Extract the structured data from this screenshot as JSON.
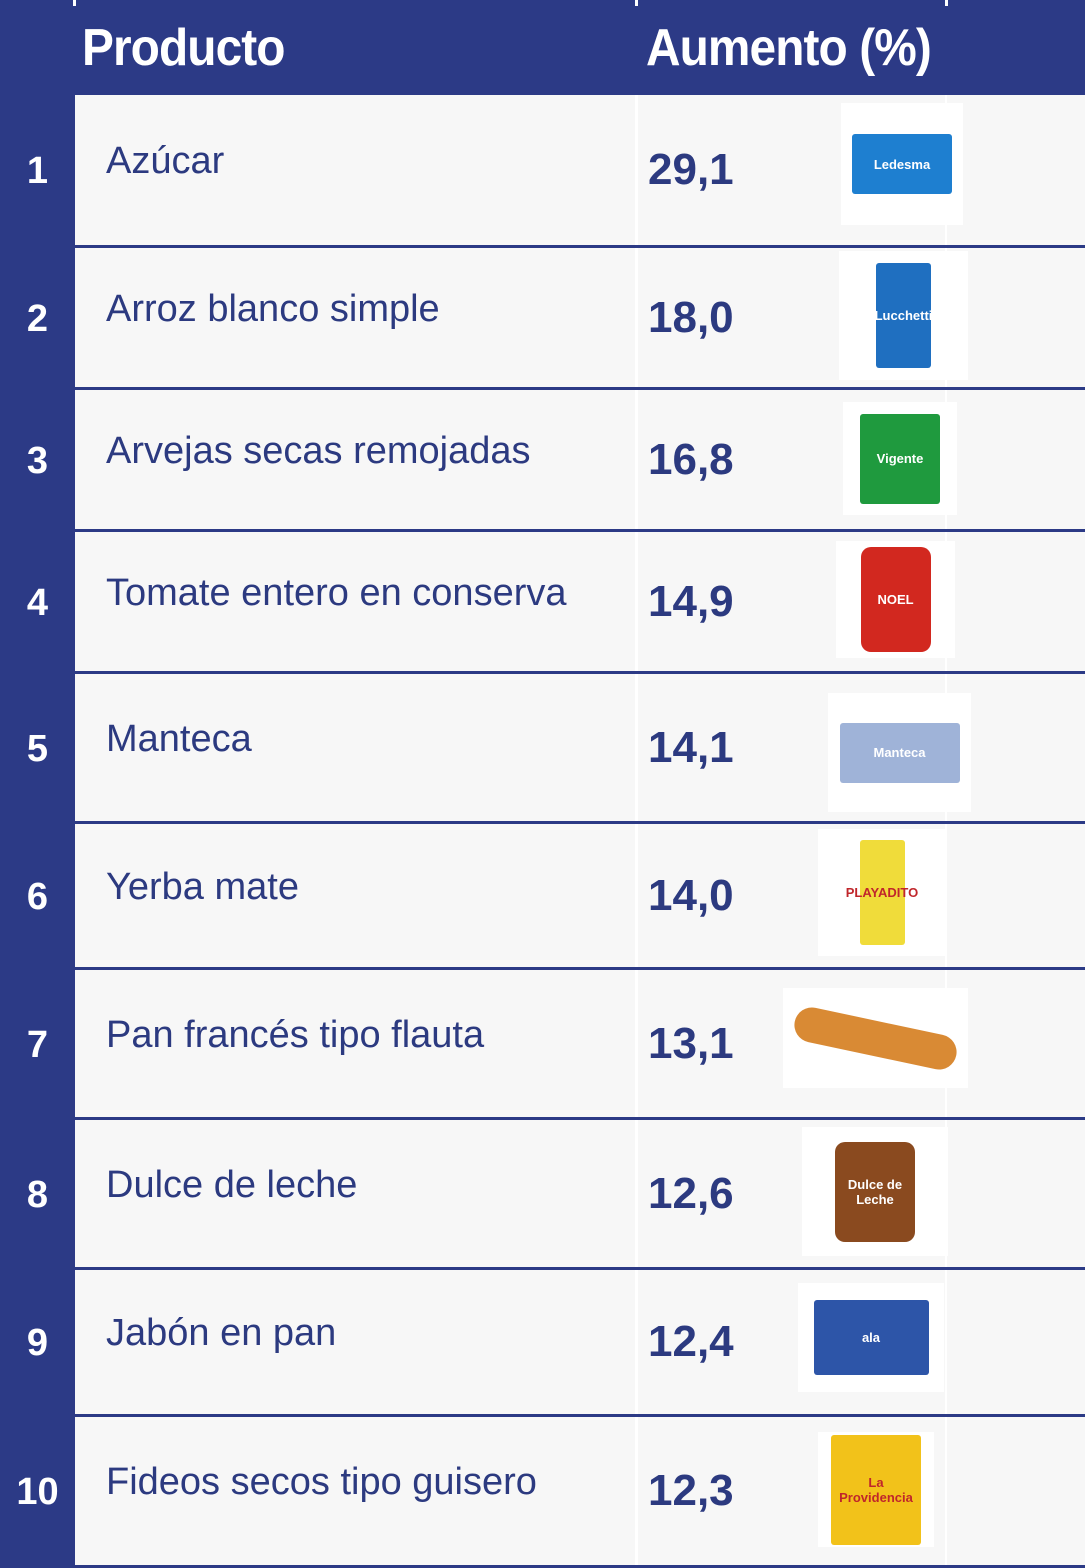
{
  "header": {
    "product": "Producto",
    "increase": "Aumento (%)"
  },
  "rows": [
    {
      "rank": "1",
      "product": "Azúcar",
      "increase": "29,1",
      "image": "sugar-package",
      "brand": "Ledesma",
      "color": "#1e7fd0"
    },
    {
      "rank": "2",
      "product": "Arroz blanco simple",
      "increase": "18,0",
      "image": "rice-package",
      "brand": "Lucchetti",
      "color": "#1f6fc0"
    },
    {
      "rank": "3",
      "product": "Arvejas secas remojadas",
      "increase": "16,8",
      "image": "peas-box",
      "brand": "Vigente",
      "color": "#1f9a3e"
    },
    {
      "rank": "4",
      "product": "Tomate entero en conserva",
      "increase": "14,9",
      "image": "tomato-can",
      "brand": "NOEL",
      "color": "#d2281f"
    },
    {
      "rank": "5",
      "product": "Manteca",
      "increase": "14,1",
      "image": "butter-package",
      "brand": "Manteca",
      "color": "#9fb3d8"
    },
    {
      "rank": "6",
      "product": "Yerba mate",
      "increase": "14,0",
      "image": "yerba-package",
      "brand": "PLAYADITO",
      "color": "#f0dc3a"
    },
    {
      "rank": "7",
      "product": "Pan francés tipo flauta",
      "increase": "13,1",
      "image": "bread-baguette",
      "brand": "",
      "color": "#d98a34"
    },
    {
      "rank": "8",
      "product": "Dulce de leche",
      "increase": "12,6",
      "image": "dulce-de-leche-cup",
      "brand": "Dulce de Leche",
      "color": "#8a4a1f"
    },
    {
      "rank": "9",
      "product": "Jabón en pan",
      "increase": "12,4",
      "image": "soap-package",
      "brand": "ala",
      "color": "#2d55a8"
    },
    {
      "rank": "10",
      "product": "Fideos secos tipo guisero",
      "increase": "12,3",
      "image": "pasta-package",
      "brand": "La Providencia",
      "color": "#f2c21a"
    }
  ]
}
